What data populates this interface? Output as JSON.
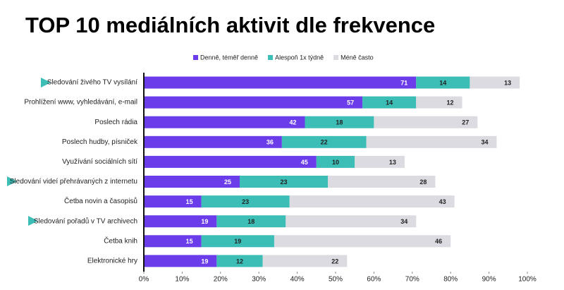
{
  "chart_data": {
    "type": "bar",
    "orientation": "horizontal",
    "stacked": true,
    "title": "TOP 10 mediálních aktivit dle frekvence",
    "categories": [
      "Sledování živého TV vysílání",
      "Prohlížení www, vyhledávání, e-mail",
      "Poslech rádia",
      "Poslech hudby, písniček",
      "Využívání sociálních sítí",
      "Sledování videí přehrávaných z internetu",
      "Četba novin a časopisů",
      "Sledování pořadů v TV archivech",
      "Četba knih",
      "Elektronické hry"
    ],
    "series": [
      {
        "name": "Denně, téměř denně",
        "color": "#6b3cea",
        "values": [
          71,
          57,
          42,
          36,
          45,
          25,
          15,
          19,
          15,
          19
        ]
      },
      {
        "name": "Alespoň 1x týdně",
        "color": "#3cbdb6",
        "values": [
          14,
          14,
          18,
          22,
          10,
          23,
          23,
          18,
          19,
          12
        ]
      },
      {
        "name": "Méně často",
        "color": "#dcdbe1",
        "values": [
          13,
          12,
          27,
          34,
          13,
          28,
          43,
          34,
          46,
          22
        ]
      }
    ],
    "xlim": [
      0,
      100
    ],
    "xticks": [
      {
        "value": 0,
        "label": "0%"
      },
      {
        "value": 10,
        "label": "10%"
      },
      {
        "value": 20,
        "label": "20%"
      },
      {
        "value": 30,
        "label": "30%"
      },
      {
        "value": 40,
        "label": "40%"
      },
      {
        "value": 50,
        "label": "50%"
      },
      {
        "value": 60,
        "label": "60%"
      },
      {
        "value": 70,
        "label": "70%"
      },
      {
        "value": 80,
        "label": "80%"
      },
      {
        "value": 90,
        "label": "90%"
      },
      {
        "value": 100,
        "label": "100%"
      }
    ]
  }
}
